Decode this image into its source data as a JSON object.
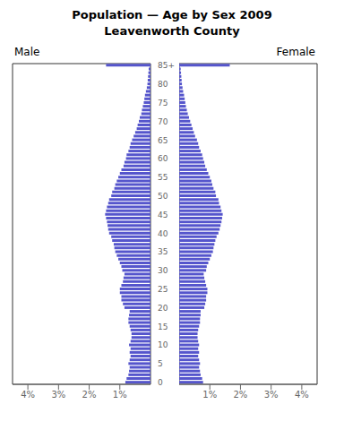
{
  "chart_data": {
    "type": "bar",
    "orientation": "horizontal",
    "title": "Population — Age by Sex 2009",
    "subtitle": "Leavenworth County",
    "categories": [
      0,
      null,
      null,
      null,
      null,
      5,
      null,
      null,
      null,
      null,
      10,
      null,
      null,
      null,
      null,
      15,
      null,
      null,
      null,
      null,
      20,
      null,
      null,
      null,
      null,
      25,
      null,
      null,
      null,
      null,
      30,
      null,
      null,
      null,
      null,
      35,
      null,
      null,
      null,
      null,
      40,
      null,
      null,
      null,
      null,
      45,
      null,
      null,
      null,
      null,
      50,
      null,
      null,
      null,
      null,
      55,
      null,
      null,
      null,
      null,
      60,
      null,
      null,
      null,
      null,
      65,
      null,
      null,
      null,
      null,
      70,
      null,
      null,
      null,
      null,
      75,
      null,
      null,
      null,
      null,
      80,
      null,
      null,
      null,
      null,
      "85+"
    ],
    "series": [
      {
        "name": "Male",
        "color": "#5555cc",
        "values": [
          0.82,
          0.78,
          0.72,
          0.7,
          0.68,
          0.72,
          0.68,
          0.65,
          0.68,
          0.65,
          0.7,
          0.65,
          0.62,
          0.62,
          0.65,
          0.68,
          0.72,
          0.72,
          0.7,
          0.68,
          0.85,
          0.9,
          0.95,
          0.95,
          1.0,
          1.0,
          0.95,
          0.9,
          0.88,
          0.85,
          0.92,
          0.95,
          1.0,
          1.05,
          1.1,
          1.15,
          1.18,
          1.2,
          1.25,
          1.28,
          1.35,
          1.38,
          1.4,
          1.42,
          1.45,
          1.48,
          1.45,
          1.42,
          1.38,
          1.35,
          1.28,
          1.25,
          1.18,
          1.15,
          1.1,
          1.05,
          1.0,
          0.95,
          0.88,
          0.85,
          0.8,
          0.78,
          0.72,
          0.68,
          0.65,
          0.6,
          0.55,
          0.5,
          0.45,
          0.42,
          0.38,
          0.35,
          0.3,
          0.28,
          0.25,
          0.22,
          0.2,
          0.18,
          0.15,
          0.12,
          0.1,
          0.09,
          0.08,
          0.07,
          0.06,
          1.45
        ]
      },
      {
        "name": "Female",
        "color": "#5555cc",
        "values": [
          0.78,
          0.75,
          0.7,
          0.68,
          0.65,
          0.68,
          0.65,
          0.62,
          0.65,
          0.62,
          0.65,
          0.62,
          0.6,
          0.6,
          0.62,
          0.65,
          0.68,
          0.68,
          0.7,
          0.7,
          0.82,
          0.85,
          0.88,
          0.88,
          0.92,
          0.92,
          0.88,
          0.85,
          0.82,
          0.8,
          0.88,
          0.9,
          0.95,
          1.0,
          1.05,
          1.1,
          1.12,
          1.15,
          1.18,
          1.22,
          1.28,
          1.32,
          1.35,
          1.38,
          1.4,
          1.42,
          1.38,
          1.35,
          1.3,
          1.28,
          1.2,
          1.18,
          1.12,
          1.08,
          1.05,
          1.0,
          0.95,
          0.9,
          0.85,
          0.82,
          0.78,
          0.75,
          0.7,
          0.65,
          0.62,
          0.58,
          0.52,
          0.48,
          0.44,
          0.4,
          0.36,
          0.32,
          0.28,
          0.25,
          0.22,
          0.2,
          0.18,
          0.16,
          0.13,
          0.11,
          0.09,
          0.08,
          0.07,
          0.06,
          0.05,
          1.65
        ]
      }
    ],
    "xlim": [
      0,
      4.5
    ],
    "xticks": [
      {
        "value": 1,
        "label": "1%"
      },
      {
        "value": 2,
        "label": "2%"
      },
      {
        "value": 3,
        "label": "3%"
      },
      {
        "value": 4,
        "label": "4%"
      }
    ]
  }
}
